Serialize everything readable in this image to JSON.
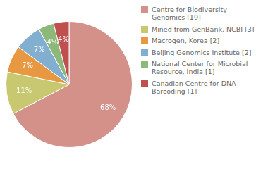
{
  "chart_data": {
    "type": "pie",
    "categories": [
      "Centre for Biodiversity\nGenomics [19]",
      "Mined from GenBank, NCBI [3]",
      "Macrogen, Korea [2]",
      "Beijing Genomics Institute [2]",
      "National Center for Microbial\nResource, India [1]",
      "Canadian Centre for DNA\nBarcoding [1]"
    ],
    "values": [
      68,
      11,
      7,
      7,
      4,
      4
    ],
    "value_labels": [
      "68%",
      "11%",
      "7%",
      "7%",
      "4%",
      "4%"
    ],
    "colors": [
      "#d4918a",
      "#c8c870",
      "#e89840",
      "#82aed0",
      "#8cb87a",
      "#c05050"
    ],
    "data_labels": true,
    "legend": "right"
  }
}
